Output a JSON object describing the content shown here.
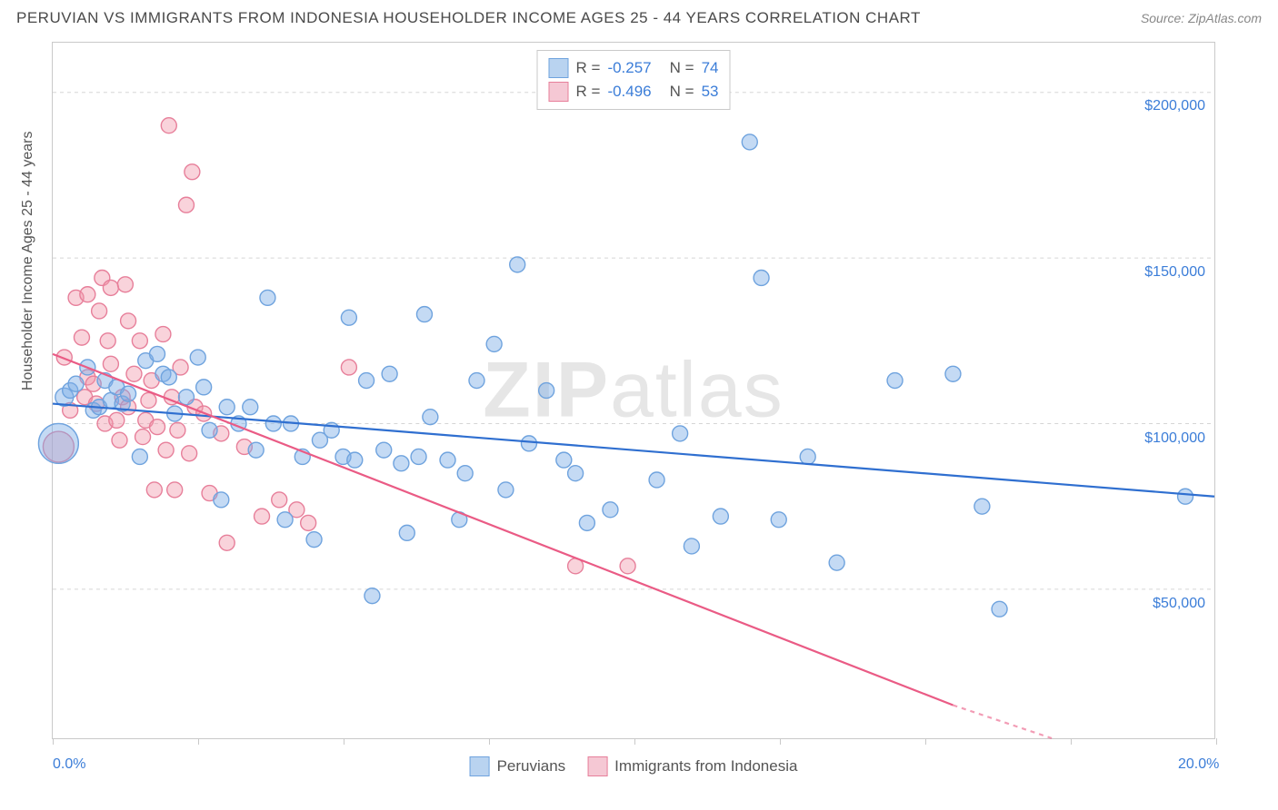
{
  "header": {
    "title": "PERUVIAN VS IMMIGRANTS FROM INDONESIA HOUSEHOLDER INCOME AGES 25 - 44 YEARS CORRELATION CHART",
    "source": "Source: ZipAtlas.com"
  },
  "watermark": "ZIPatlas",
  "chart": {
    "type": "scatter",
    "y_label": "Householder Income Ages 25 - 44 years",
    "xlim": [
      0,
      20
    ],
    "ylim": [
      5000,
      215000
    ],
    "x_ticks": [
      0,
      2.5,
      5,
      7.5,
      10,
      12.5,
      15,
      17.5,
      20
    ],
    "x_tick_labels": {
      "0": "0.0%",
      "20": "20.0%"
    },
    "y_gridlines": [
      50000,
      100000,
      150000,
      200000
    ],
    "y_tick_labels": [
      "$50,000",
      "$100,000",
      "$150,000",
      "$200,000"
    ],
    "grid_color": "#d5d5d5",
    "border_color": "#c9c9c9",
    "background_color": "#ffffff",
    "tick_label_color": "#3b7dd8",
    "axis_label_color": "#555555",
    "series": [
      {
        "name": "Peruvians",
        "fill": "rgba(124,173,230,0.45)",
        "stroke": "#6fa3de",
        "line_color": "#2f6fd0",
        "line_width": 2.2,
        "marker_r": 8.5,
        "R": "-0.257",
        "N": "74",
        "trend": {
          "x1": 0,
          "y1": 106000,
          "x2": 20,
          "y2": 78000
        },
        "points": [
          [
            0.1,
            94000,
            22
          ],
          [
            0.2,
            108000,
            10
          ],
          [
            0.3,
            110000,
            8.5
          ],
          [
            0.4,
            112000,
            8.5
          ],
          [
            0.6,
            117000,
            8.5
          ],
          [
            0.7,
            104000,
            8.5
          ],
          [
            0.8,
            105000,
            8.5
          ],
          [
            0.9,
            113000,
            8.5
          ],
          [
            1.0,
            107000,
            8.5
          ],
          [
            1.1,
            111000,
            8.5
          ],
          [
            1.2,
            106000,
            8.5
          ],
          [
            1.3,
            109000,
            8.5
          ],
          [
            1.5,
            90000,
            8.5
          ],
          [
            1.6,
            119000,
            8.5
          ],
          [
            1.8,
            121000,
            8.5
          ],
          [
            1.9,
            115000,
            8.5
          ],
          [
            2.0,
            114000,
            8.5
          ],
          [
            2.1,
            103000,
            8.5
          ],
          [
            2.3,
            108000,
            8.5
          ],
          [
            2.5,
            120000,
            8.5
          ],
          [
            2.6,
            111000,
            8.5
          ],
          [
            2.7,
            98000,
            8.5
          ],
          [
            2.9,
            77000,
            8.5
          ],
          [
            3.0,
            105000,
            8.5
          ],
          [
            3.2,
            100000,
            8.5
          ],
          [
            3.4,
            105000,
            8.5
          ],
          [
            3.5,
            92000,
            8.5
          ],
          [
            3.7,
            138000,
            8.5
          ],
          [
            3.8,
            100000,
            8.5
          ],
          [
            4.0,
            71000,
            8.5
          ],
          [
            4.1,
            100000,
            8.5
          ],
          [
            4.3,
            90000,
            8.5
          ],
          [
            4.5,
            65000,
            8.5
          ],
          [
            4.6,
            95000,
            8.5
          ],
          [
            4.8,
            98000,
            8.5
          ],
          [
            5.0,
            90000,
            8.5
          ],
          [
            5.1,
            132000,
            8.5
          ],
          [
            5.2,
            89000,
            8.5
          ],
          [
            5.4,
            113000,
            8.5
          ],
          [
            5.5,
            48000,
            8.5
          ],
          [
            5.7,
            92000,
            8.5
          ],
          [
            5.8,
            115000,
            8.5
          ],
          [
            6.0,
            88000,
            8.5
          ],
          [
            6.1,
            67000,
            8.5
          ],
          [
            6.3,
            90000,
            8.5
          ],
          [
            6.4,
            133000,
            8.5
          ],
          [
            6.5,
            102000,
            8.5
          ],
          [
            6.8,
            89000,
            8.5
          ],
          [
            7.0,
            71000,
            8.5
          ],
          [
            7.1,
            85000,
            8.5
          ],
          [
            7.3,
            113000,
            8.5
          ],
          [
            7.6,
            124000,
            8.5
          ],
          [
            7.8,
            80000,
            8.5
          ],
          [
            8.0,
            148000,
            8.5
          ],
          [
            8.2,
            94000,
            8.5
          ],
          [
            8.5,
            110000,
            8.5
          ],
          [
            8.8,
            89000,
            8.5
          ],
          [
            9.0,
            85000,
            8.5
          ],
          [
            9.2,
            70000,
            8.5
          ],
          [
            9.6,
            74000,
            8.5
          ],
          [
            10.4,
            83000,
            8.5
          ],
          [
            10.8,
            97000,
            8.5
          ],
          [
            11.0,
            63000,
            8.5
          ],
          [
            11.5,
            72000,
            8.5
          ],
          [
            12.0,
            185000,
            8.5
          ],
          [
            12.2,
            144000,
            8.5
          ],
          [
            12.5,
            71000,
            8.5
          ],
          [
            13.0,
            90000,
            8.5
          ],
          [
            13.5,
            58000,
            8.5
          ],
          [
            14.5,
            113000,
            8.5
          ],
          [
            15.5,
            115000,
            8.5
          ],
          [
            16.0,
            75000,
            8.5
          ],
          [
            16.3,
            44000,
            8.5
          ],
          [
            19.5,
            78000,
            8.5
          ]
        ]
      },
      {
        "name": "Immigrants from Indonesia",
        "fill": "rgba(240,150,170,0.42)",
        "stroke": "#e77f9a",
        "line_color": "#ea5b85",
        "line_width": 2.2,
        "marker_r": 8.5,
        "R": "-0.496",
        "N": "53",
        "trend": {
          "x1": 0,
          "y1": 121000,
          "x2": 15.5,
          "y2": 15000
        },
        "trend_dash_after": {
          "x1": 15.5,
          "y1": 15000,
          "x2": 17.2,
          "y2": 5000
        },
        "points": [
          [
            0.1,
            93000,
            17
          ],
          [
            0.2,
            120000,
            8.5
          ],
          [
            0.3,
            104000,
            8.5
          ],
          [
            0.4,
            138000,
            8.5
          ],
          [
            0.5,
            126000,
            8.5
          ],
          [
            0.55,
            108000,
            8.5
          ],
          [
            0.6,
            114000,
            8.5
          ],
          [
            0.6,
            139000,
            8.5
          ],
          [
            0.7,
            112000,
            8.5
          ],
          [
            0.75,
            106000,
            8.5
          ],
          [
            0.8,
            134000,
            8.5
          ],
          [
            0.85,
            144000,
            8.5
          ],
          [
            0.9,
            100000,
            8.5
          ],
          [
            0.95,
            125000,
            8.5
          ],
          [
            1.0,
            118000,
            8.5
          ],
          [
            1.0,
            141000,
            8.5
          ],
          [
            1.1,
            101000,
            8.5
          ],
          [
            1.15,
            95000,
            8.5
          ],
          [
            1.2,
            108000,
            8.5
          ],
          [
            1.25,
            142000,
            8.5
          ],
          [
            1.3,
            105000,
            8.5
          ],
          [
            1.3,
            131000,
            8.5
          ],
          [
            1.4,
            115000,
            8.5
          ],
          [
            1.5,
            125000,
            8.5
          ],
          [
            1.55,
            96000,
            8.5
          ],
          [
            1.6,
            101000,
            8.5
          ],
          [
            1.65,
            107000,
            8.5
          ],
          [
            1.7,
            113000,
            8.5
          ],
          [
            1.75,
            80000,
            8.5
          ],
          [
            1.8,
            99000,
            8.5
          ],
          [
            1.9,
            127000,
            8.5
          ],
          [
            1.95,
            92000,
            8.5
          ],
          [
            2.0,
            190000,
            8.5
          ],
          [
            2.05,
            108000,
            8.5
          ],
          [
            2.1,
            80000,
            8.5
          ],
          [
            2.15,
            98000,
            8.5
          ],
          [
            2.2,
            117000,
            8.5
          ],
          [
            2.3,
            166000,
            8.5
          ],
          [
            2.35,
            91000,
            8.5
          ],
          [
            2.4,
            176000,
            8.5
          ],
          [
            2.45,
            105000,
            8.5
          ],
          [
            2.6,
            103000,
            8.5
          ],
          [
            2.7,
            79000,
            8.5
          ],
          [
            2.9,
            97000,
            8.5
          ],
          [
            3.0,
            64000,
            8.5
          ],
          [
            3.3,
            93000,
            8.5
          ],
          [
            3.6,
            72000,
            8.5
          ],
          [
            3.9,
            77000,
            8.5
          ],
          [
            4.2,
            74000,
            8.5
          ],
          [
            4.4,
            70000,
            8.5
          ],
          [
            5.1,
            117000,
            8.5
          ],
          [
            9.0,
            57000,
            8.5
          ],
          [
            9.9,
            57000,
            8.5
          ]
        ]
      }
    ]
  },
  "legend": {
    "s1": "Peruvians",
    "s2": "Immigrants from Indonesia"
  },
  "colors": {
    "blue_fill": "#b9d3f0",
    "blue_stroke": "#6fa3de",
    "pink_fill": "#f5c8d4",
    "pink_stroke": "#e77f9a",
    "link_blue": "#3b7dd8"
  }
}
